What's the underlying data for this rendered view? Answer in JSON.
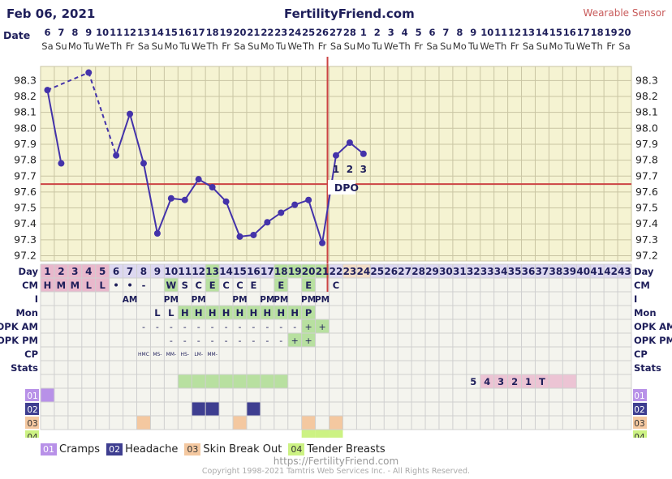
{
  "header": {
    "date": "Feb 06, 2021",
    "site": "FertilityFriend.com",
    "sensor": "Wearable Sensor"
  },
  "chart_data": {
    "type": "line",
    "title": "",
    "ylim": [
      97.1,
      98.45
    ],
    "y_ticks": [
      "98.3",
      "98.2",
      "98.1",
      "98.0",
      "97.9",
      "97.8",
      "97.7",
      "97.6",
      "97.5",
      "97.4",
      "97.3",
      "97.2"
    ],
    "date_numbers": [
      "6",
      "7",
      "8",
      "9",
      "10",
      "11",
      "12",
      "13",
      "14",
      "15",
      "16",
      "17",
      "18",
      "19",
      "20",
      "21",
      "22",
      "23",
      "24",
      "25",
      "26",
      "27",
      "28",
      "1",
      "2",
      "3",
      "4",
      "5",
      "6",
      "7",
      "8",
      "9",
      "10",
      "11",
      "12",
      "13",
      "14",
      "15",
      "16",
      "17",
      "18",
      "19",
      "20"
    ],
    "weekdays": [
      "Sa",
      "Su",
      "Mo",
      "Tu",
      "We",
      "Th",
      "Fr",
      "Sa",
      "Su",
      "Mo",
      "Tu",
      "We",
      "Th",
      "Fr",
      "Sa",
      "Su",
      "Mo",
      "Tu",
      "We",
      "Th",
      "Fr",
      "Sa",
      "Su",
      "Mo",
      "Tu",
      "We",
      "Th",
      "Fr",
      "Sa",
      "Su",
      "Mo",
      "Tu",
      "We",
      "Th",
      "Fr",
      "Sa",
      "Su",
      "Mo",
      "Tu",
      "We",
      "Th",
      "Fr",
      "Sa"
    ],
    "cycle_days": [
      "1",
      "2",
      "3",
      "4",
      "5",
      "6",
      "7",
      "8",
      "9",
      "10",
      "11",
      "12",
      "13",
      "14",
      "15",
      "16",
      "17",
      "18",
      "19",
      "20",
      "21",
      "22",
      "23",
      "24",
      "25",
      "26",
      "27",
      "28",
      "29",
      "30",
      "31",
      "32",
      "33",
      "34",
      "35",
      "36",
      "37",
      "38",
      "39",
      "40",
      "41",
      "42",
      "43"
    ],
    "temperatures": [
      98.24,
      97.78,
      null,
      98.35,
      null,
      97.83,
      98.09,
      97.78,
      97.34,
      97.56,
      97.55,
      97.68,
      97.63,
      97.54,
      97.32,
      97.33,
      97.41,
      97.47,
      97.52,
      97.55,
      97.28,
      97.83,
      97.91,
      97.84
    ],
    "dashed_gaps": [
      [
        0,
        3
      ],
      [
        3,
        5
      ]
    ],
    "coverline": 97.65,
    "ovulation_day": 21,
    "dpo_labels": [
      "1",
      "2",
      "3"
    ],
    "dpo_text": "DPO",
    "row_labels": {
      "date": "Date",
      "day": "Day",
      "cm": "CM",
      "i": "I",
      "mon": "Mon",
      "opk_am": "OPK AM",
      "opk_pm": "OPK PM",
      "cp": "CP",
      "stats": "Stats",
      "s01": "01",
      "s02": "02",
      "s03": "03",
      "s04": "04"
    },
    "rows": {
      "cm": {
        "1": "H",
        "2": "M",
        "3": "M",
        "4": "L",
        "5": "L",
        "6": "•",
        "7": "•",
        "8": "-",
        "10": "W",
        "11": "S",
        "12": "C",
        "13": "E",
        "14": "C",
        "15": "C",
        "16": "E",
        "18": "E",
        "20": "E",
        "22": "C"
      },
      "i": {
        "7": "AM",
        "10": "PM",
        "12": "PM",
        "15": "PM",
        "17": "PM",
        "18": "PM",
        "20": "PM",
        "21": "PM"
      },
      "mon": {
        "9": "L",
        "10": "L",
        "11": "H",
        "12": "H",
        "13": "H",
        "14": "H",
        "15": "H",
        "16": "H",
        "17": "H",
        "18": "H",
        "19": "H",
        "20": "P"
      },
      "opk_am": {
        "8": "-",
        "9": "-",
        "10": "-",
        "11": "-",
        "12": "-",
        "13": "-",
        "14": "-",
        "15": "-",
        "16": "-",
        "17": "-",
        "18": "-",
        "19": "-",
        "20": "+",
        "21": "+"
      },
      "opk_pm": {
        "10": "-",
        "11": "-",
        "12": "-",
        "13": "-",
        "14": "-",
        "15": "-",
        "16": "-",
        "17": "-",
        "18": "-",
        "19": "+",
        "20": "+"
      },
      "cp": {
        "8": "HMC",
        "9": "MS-",
        "10": "MM-",
        "11": "HS-",
        "12": "LM-",
        "13": "MM-"
      },
      "stats": {
        "32": "5",
        "33": "4",
        "34": "3",
        "35": "2",
        "36": "1",
        "37": "T"
      }
    },
    "symptom_days": {
      "s01": [
        1
      ],
      "s02": [
        12,
        13,
        16
      ],
      "s03": [
        8,
        15,
        20,
        22
      ],
      "s04": [
        20,
        21,
        22
      ]
    },
    "colors": {
      "plot_bg": "#f5f3d2",
      "grid": "#c9c5a3",
      "line": "#4433aa",
      "red": "#cc4444",
      "menses": "#e9b8cc",
      "fertile": "#b8e0a0",
      "day_bg": "#ddd8f0",
      "s01": "#b891e8",
      "s02": "#3e3e90",
      "s03": "#f4c8a0",
      "s04": "#ccf283",
      "stats": "#ecc4d4"
    }
  },
  "legend": {
    "items": [
      {
        "tag": "01",
        "label": "Cramps"
      },
      {
        "tag": "02",
        "label": "Headache"
      },
      {
        "tag": "03",
        "label": "Skin Break Out"
      },
      {
        "tag": "04",
        "label": "Tender Breasts"
      }
    ]
  },
  "footer": {
    "url": "https://FertilityFriend.com",
    "copyright": "Copyright 1998-2021 Tamtris Web Services Inc. - All Rights Reserved."
  }
}
